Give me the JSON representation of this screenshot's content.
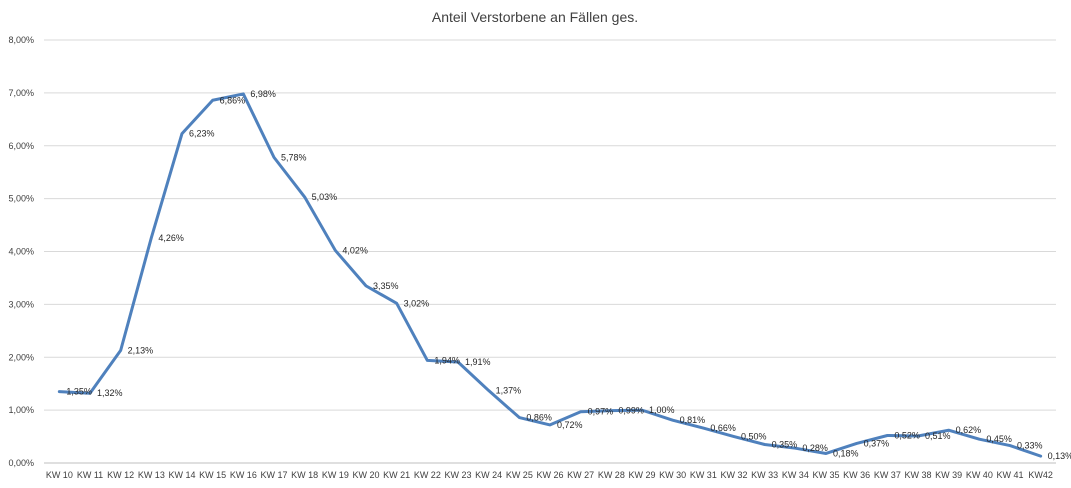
{
  "chart_data": {
    "type": "line",
    "title": "Anteil Verstorbene an Fällen ges.",
    "xlabel": "",
    "ylabel": "",
    "categories": [
      "KW 10",
      "KW 11",
      "KW 12",
      "KW 13",
      "KW 14",
      "KW 15",
      "KW 16",
      "KW 17",
      "KW 18",
      "KW 19",
      "KW 20",
      "KW 21",
      "KW 22",
      "KW 23",
      "KW 24",
      "KW 25",
      "KW 26",
      "KW 27",
      "KW 28",
      "KW 29",
      "KW 30",
      "KW 31",
      "KW 32",
      "KW 33",
      "KW 34",
      "KW 35",
      "KW 36",
      "KW 37",
      "KW 38",
      "KW 39",
      "KW 40",
      "KW 41",
      "KW42"
    ],
    "series": [
      {
        "values": [
          1.35,
          1.32,
          2.13,
          4.26,
          6.23,
          6.86,
          6.98,
          5.78,
          5.03,
          4.02,
          3.35,
          3.02,
          1.94,
          1.91,
          1.37,
          0.86,
          0.72,
          0.97,
          0.99,
          1.0,
          0.81,
          0.66,
          0.5,
          0.35,
          0.28,
          0.18,
          0.37,
          0.52,
          0.51,
          0.62,
          0.45,
          0.33,
          0.13
        ],
        "labels": [
          "1,35%",
          "1,32%",
          "2,13%",
          "4,26%",
          "6,23%",
          "6,86%",
          "6,98%",
          "5,78%",
          "5,03%",
          "4,02%",
          "3,35%",
          "3,02%",
          "1,94%",
          "1,91%",
          "1,37%",
          "0,86%",
          "0,72%",
          "0,97%",
          "0,99%",
          "1,00%",
          "0,81%",
          "0,66%",
          "0,50%",
          "0,35%",
          "0,28%",
          "0,18%",
          "0,37%",
          "0,52%",
          "0,51%",
          "0,62%",
          "0,45%",
          "0,33%",
          "0,13%"
        ],
        "color": "#4f81bd"
      }
    ],
    "ylim": [
      0,
      8
    ],
    "yticks": [
      0,
      1,
      2,
      3,
      4,
      5,
      6,
      7,
      8
    ],
    "ytick_labels": [
      "0,00%",
      "1,00%",
      "2,00%",
      "3,00%",
      "4,00%",
      "5,00%",
      "6,00%",
      "7,00%",
      "8,00%"
    ],
    "grid": true,
    "gridline_color": "#d9d9d9",
    "legend": "none"
  }
}
